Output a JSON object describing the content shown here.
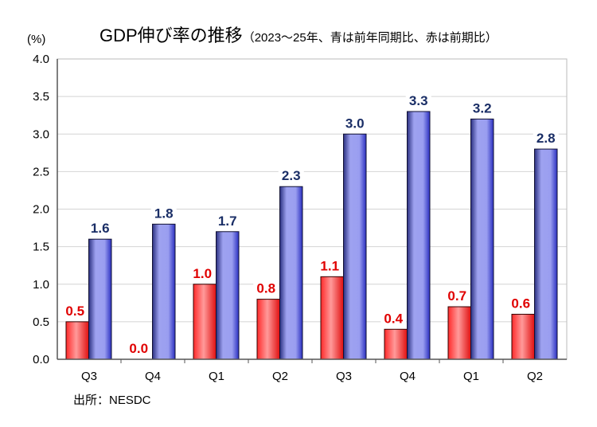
{
  "chart_data": {
    "type": "bar",
    "title": "GDP伸び率の推移",
    "subtitle": "（2023～25年、青は前年同期比、赤は前期比）",
    "ylabel": "(%)",
    "source": "出所：NESDC",
    "categories": [
      "Q3",
      "Q4",
      "Q1",
      "Q2",
      "Q3",
      "Q4",
      "Q1",
      "Q2"
    ],
    "ylim": [
      0,
      4.0
    ],
    "yticks": [
      "0.0",
      "0.5",
      "1.0",
      "1.5",
      "2.0",
      "2.5",
      "3.0",
      "3.5",
      "4.0"
    ],
    "grid": true,
    "series": [
      {
        "values": [
          0.5,
          0.0,
          1.0,
          0.8,
          1.1,
          0.4,
          0.7,
          0.6
        ],
        "color": "#ff3b3b",
        "label_color": "#e00000"
      },
      {
        "values": [
          1.6,
          1.8,
          1.7,
          2.3,
          3.0,
          3.3,
          3.2,
          2.8
        ],
        "color": "#8c8ee8",
        "label_color": "#1a2e66"
      }
    ]
  }
}
